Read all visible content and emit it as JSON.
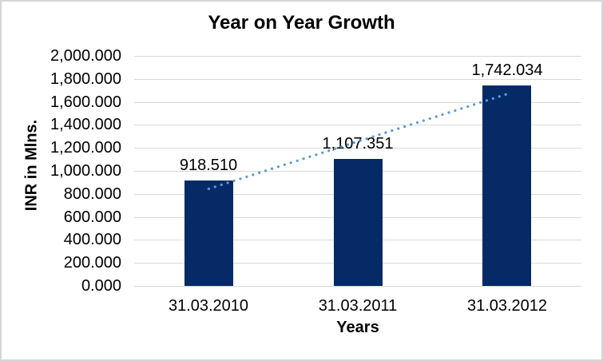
{
  "chart_data": {
    "type": "bar",
    "title": "Year on Year Growth",
    "xlabel": "Years",
    "ylabel": "INR in Mlns.",
    "categories": [
      "31.03.2010",
      "31.03.2011",
      "31.03.2012"
    ],
    "values": [
      918.51,
      1107.351,
      1742.034
    ],
    "value_labels": [
      "918.510",
      "1,107.351",
      "1,742.034"
    ],
    "ylim": [
      0,
      2000
    ],
    "ytick_step": 200,
    "ytick_labels": [
      "2,000.000",
      "1,800.000",
      "1,600.000",
      "1,400.000",
      "1,200.000",
      "1,000.000",
      "800.000",
      "600.000",
      "400.000",
      "200.000",
      "0.000"
    ],
    "grid": true,
    "legend": "none",
    "trendline": {
      "type": "linear",
      "style": "dotted"
    },
    "colors": {
      "bar": "#052a66",
      "trend": "#5b9bd5",
      "gridline": "#d9d9d9",
      "text": "#000000",
      "frame_border": "#d6d6d6",
      "background": "#ffffff"
    }
  }
}
